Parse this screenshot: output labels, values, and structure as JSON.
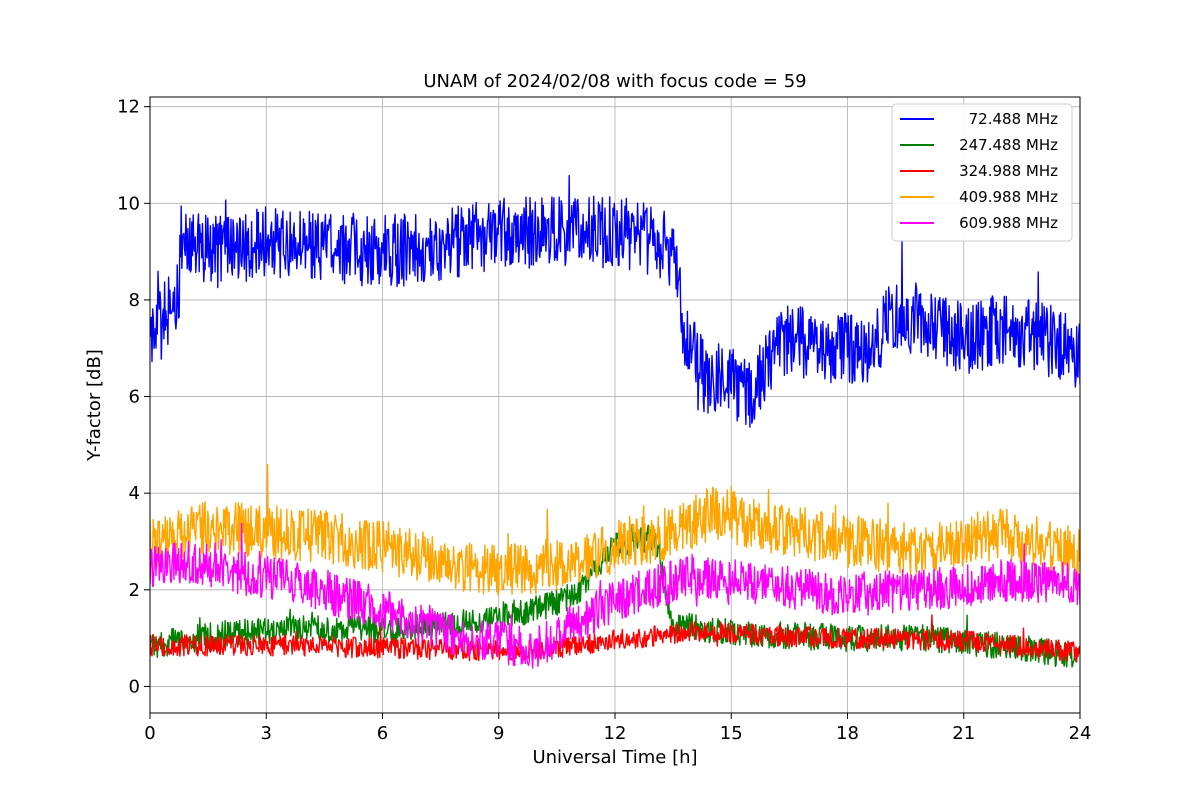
{
  "chart_data": {
    "type": "line",
    "title": "UNAM of 2024/02/08 with focus code = 59",
    "xlabel": "Universal Time [h]",
    "ylabel": "Y-factor [dB]",
    "xlim": [
      0,
      24
    ],
    "ylim": [
      -0.55,
      12.2
    ],
    "xticks": [
      0,
      3,
      6,
      9,
      12,
      15,
      18,
      21,
      24
    ],
    "yticks": [
      0,
      2,
      4,
      6,
      8,
      10,
      12
    ],
    "grid": true,
    "legend_position": "top-right",
    "series": [
      {
        "name": "72.488 MHz",
        "color": "#0000ff",
        "noise": 0.75,
        "points": [
          [
            0,
            7.0
          ],
          [
            0.2,
            7.4
          ],
          [
            0.5,
            7.8
          ],
          [
            0.75,
            8.3
          ],
          [
            0.8,
            9.3
          ],
          [
            1.5,
            9.0
          ],
          [
            3,
            9.2
          ],
          [
            4.5,
            9.1
          ],
          [
            6,
            9.0
          ],
          [
            7.5,
            9.1
          ],
          [
            9,
            9.4
          ],
          [
            10.5,
            9.4
          ],
          [
            12,
            9.4
          ],
          [
            13.2,
            9.2
          ],
          [
            13.6,
            8.6
          ],
          [
            13.8,
            7.2
          ],
          [
            14.3,
            6.4
          ],
          [
            15.0,
            6.3
          ],
          [
            15.5,
            6.1
          ],
          [
            16.0,
            6.8
          ],
          [
            16.5,
            7.2
          ],
          [
            17.5,
            7.0
          ],
          [
            18.5,
            7.0
          ],
          [
            19.0,
            7.5
          ],
          [
            19.1,
            7.7
          ],
          [
            20.0,
            7.6
          ],
          [
            21.0,
            7.2
          ],
          [
            22.0,
            7.4
          ],
          [
            23.5,
            7.1
          ],
          [
            24,
            6.8
          ]
        ]
      },
      {
        "name": "247.488 MHz",
        "color": "#008000",
        "noise": 0.28,
        "points": [
          [
            0,
            0.85
          ],
          [
            2,
            1.1
          ],
          [
            4,
            1.2
          ],
          [
            6,
            1.15
          ],
          [
            8,
            1.3
          ],
          [
            10,
            1.6
          ],
          [
            11,
            1.9
          ],
          [
            12,
            2.9
          ],
          [
            13,
            3.1
          ],
          [
            13.5,
            1.3
          ],
          [
            15,
            1.1
          ],
          [
            18,
            1.0
          ],
          [
            20,
            1.0
          ],
          [
            22,
            0.85
          ],
          [
            24,
            0.6
          ]
        ]
      },
      {
        "name": "324.988 MHz",
        "color": "#ff0000",
        "noise": 0.22,
        "points": [
          [
            0,
            0.85
          ],
          [
            3,
            0.85
          ],
          [
            6,
            0.8
          ],
          [
            8,
            0.75
          ],
          [
            10,
            0.75
          ],
          [
            12,
            0.95
          ],
          [
            14,
            1.15
          ],
          [
            16,
            1.05
          ],
          [
            18,
            1.0
          ],
          [
            21,
            0.95
          ],
          [
            24,
            0.7
          ]
        ]
      },
      {
        "name": "409.988 MHz",
        "color": "#ffa500",
        "noise": 0.55,
        "points": [
          [
            0,
            2.9
          ],
          [
            1.5,
            3.3
          ],
          [
            3,
            3.2
          ],
          [
            4.5,
            3.1
          ],
          [
            6,
            2.9
          ],
          [
            7.5,
            2.6
          ],
          [
            9,
            2.4
          ],
          [
            10.5,
            2.5
          ],
          [
            12,
            2.9
          ],
          [
            13.5,
            3.2
          ],
          [
            14.5,
            3.6
          ],
          [
            16,
            3.3
          ],
          [
            18,
            3.0
          ],
          [
            20,
            2.8
          ],
          [
            22,
            3.2
          ],
          [
            24,
            2.7
          ]
        ]
      },
      {
        "name": "609.988 MHz",
        "color": "#ff00ff",
        "noise": 0.45,
        "points": [
          [
            0,
            2.5
          ],
          [
            1,
            2.6
          ],
          [
            2,
            2.4
          ],
          [
            4,
            2.1
          ],
          [
            6,
            1.6
          ],
          [
            8,
            1.0
          ],
          [
            9,
            0.9
          ],
          [
            10,
            0.8
          ],
          [
            11,
            1.3
          ],
          [
            12,
            1.8
          ],
          [
            14,
            2.3
          ],
          [
            16,
            2.1
          ],
          [
            18,
            1.9
          ],
          [
            20,
            2.0
          ],
          [
            22,
            2.2
          ],
          [
            24,
            2.1
          ]
        ]
      }
    ]
  }
}
